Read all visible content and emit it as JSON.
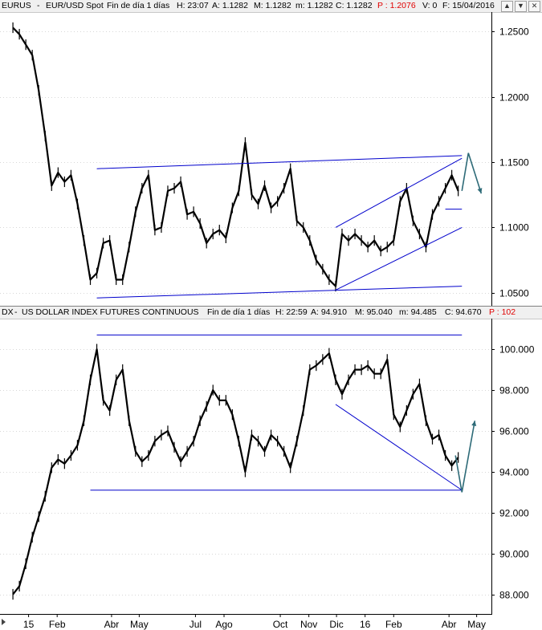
{
  "panels": [
    {
      "header": {
        "symbol": "EURUS",
        "separator": "-",
        "name": "EUR/USD Spot",
        "period": "Fin de día 1 días",
        "time": "H: 23:07",
        "open": "A: 1.1282",
        "high": "M: 1.1282",
        "low": "m: 1.1282",
        "close": "C: 1.1282",
        "p_value": "P : 1.2076",
        "volume": "V: 0",
        "date": "F: 15/04/2016"
      },
      "y_ticks": [
        "1.2500",
        "1.2000",
        "1.1500",
        "1.1000",
        "1.0500"
      ]
    },
    {
      "header": {
        "symbol": "DX",
        "separator": "-",
        "name": "US DOLLAR INDEX FUTURES CONTINUOUS",
        "period": "Fin de día 1 días",
        "time": "H: 22:59",
        "open": "A: 94.910",
        "high": "M: 95.040",
        "low": "m: 94.485",
        "close": "C: 94.670",
        "p_value": "P : 102"
      },
      "y_ticks": [
        "100.000",
        "98.000",
        "96.000",
        "94.000",
        "92.000",
        "90.000",
        "88.000"
      ]
    }
  ],
  "window_buttons": [
    "▲",
    "▼",
    "✕"
  ],
  "x_ticks": [
    "15",
    "Feb",
    "Abr",
    "May",
    "Jul",
    "Ago",
    "Oct",
    "Nov",
    "Dic",
    "16",
    "Feb",
    "Abr",
    "May"
  ],
  "colors": {
    "price": "#000000",
    "trendline": "#0000cc",
    "projection": "#2e6b78",
    "grid": "#b0b0b0",
    "header_bg": "#f0f0f0",
    "p_value": "#e00000"
  },
  "chart_data": [
    {
      "type": "line",
      "series": [
        {
          "name": "EURUS",
          "x": [
            "2014-12-15",
            "2014-12-22",
            "2014-12-29",
            "2015-01-05",
            "2015-01-12",
            "2015-01-19",
            "2015-01-26",
            "2015-02-02",
            "2015-02-09",
            "2015-02-16",
            "2015-02-23",
            "2015-03-02",
            "2015-03-09",
            "2015-03-16",
            "2015-03-23",
            "2015-03-30",
            "2015-04-06",
            "2015-04-13",
            "2015-04-20",
            "2015-04-27",
            "2015-05-04",
            "2015-05-11",
            "2015-05-18",
            "2015-05-25",
            "2015-06-01",
            "2015-06-08",
            "2015-06-15",
            "2015-06-22",
            "2015-06-29",
            "2015-07-06",
            "2015-07-13",
            "2015-07-20",
            "2015-07-27",
            "2015-08-03",
            "2015-08-10",
            "2015-08-17",
            "2015-08-24",
            "2015-08-31",
            "2015-09-07",
            "2015-09-14",
            "2015-09-21",
            "2015-09-28",
            "2015-10-05",
            "2015-10-12",
            "2015-10-19",
            "2015-10-26",
            "2015-11-02",
            "2015-11-09",
            "2015-11-16",
            "2015-11-23",
            "2015-11-30",
            "2015-12-07",
            "2015-12-14",
            "2015-12-21",
            "2015-12-28",
            "2016-01-04",
            "2016-01-11",
            "2016-01-18",
            "2016-01-25",
            "2016-02-01",
            "2016-02-08",
            "2016-02-15",
            "2016-02-22",
            "2016-02-29",
            "2016-03-07",
            "2016-03-14",
            "2016-03-21",
            "2016-03-28",
            "2016-04-04",
            "2016-04-11"
          ],
          "values": [
            1.253,
            1.248,
            1.24,
            1.232,
            1.205,
            1.17,
            1.132,
            1.142,
            1.135,
            1.14,
            1.118,
            1.09,
            1.06,
            1.065,
            1.088,
            1.09,
            1.06,
            1.06,
            1.085,
            1.112,
            1.13,
            1.14,
            1.098,
            1.1,
            1.128,
            1.13,
            1.135,
            1.11,
            1.112,
            1.103,
            1.088,
            1.095,
            1.098,
            1.092,
            1.115,
            1.128,
            1.165,
            1.125,
            1.118,
            1.132,
            1.115,
            1.12,
            1.13,
            1.145,
            1.105,
            1.1,
            1.09,
            1.075,
            1.068,
            1.06,
            1.055,
            1.095,
            1.09,
            1.095,
            1.09,
            1.085,
            1.09,
            1.082,
            1.085,
            1.09,
            1.12,
            1.13,
            1.105,
            1.095,
            1.085,
            1.11,
            1.12,
            1.13,
            1.14,
            1.128
          ]
        }
      ],
      "ylim": [
        1.04,
        1.265
      ],
      "trendlines": [
        {
          "x": [
            "2015-03-16",
            "2016-04-15"
          ],
          "y": [
            1.145,
            1.155
          ]
        },
        {
          "x": [
            "2015-03-16",
            "2016-04-15"
          ],
          "y": [
            1.046,
            1.055
          ]
        },
        {
          "x": [
            "2015-11-30",
            "2016-04-15"
          ],
          "y": [
            1.052,
            1.1
          ]
        },
        {
          "x": [
            "2015-11-30",
            "2016-04-15"
          ],
          "y": [
            1.1,
            1.153
          ]
        },
        {
          "x": [
            "2016-03-28",
            "2016-04-15"
          ],
          "y": [
            1.114,
            1.114
          ]
        }
      ],
      "projection": {
        "x": [
          "2016-04-15",
          "2016-04-22",
          "2016-05-06"
        ],
        "y": [
          1.128,
          1.157,
          1.126
        ]
      }
    },
    {
      "type": "line",
      "series": [
        {
          "name": "DX",
          "x": [
            "2014-12-15",
            "2014-12-22",
            "2014-12-29",
            "2015-01-05",
            "2015-01-12",
            "2015-01-19",
            "2015-01-26",
            "2015-02-02",
            "2015-02-09",
            "2015-02-16",
            "2015-02-23",
            "2015-03-02",
            "2015-03-09",
            "2015-03-16",
            "2015-03-23",
            "2015-03-30",
            "2015-04-06",
            "2015-04-13",
            "2015-04-20",
            "2015-04-27",
            "2015-05-04",
            "2015-05-11",
            "2015-05-18",
            "2015-05-25",
            "2015-06-01",
            "2015-06-08",
            "2015-06-15",
            "2015-06-22",
            "2015-06-29",
            "2015-07-06",
            "2015-07-13",
            "2015-07-20",
            "2015-07-27",
            "2015-08-03",
            "2015-08-10",
            "2015-08-17",
            "2015-08-24",
            "2015-08-31",
            "2015-09-07",
            "2015-09-14",
            "2015-09-21",
            "2015-09-28",
            "2015-10-05",
            "2015-10-12",
            "2015-10-19",
            "2015-10-26",
            "2015-11-02",
            "2015-11-09",
            "2015-11-16",
            "2015-11-23",
            "2015-11-30",
            "2015-12-07",
            "2015-12-14",
            "2015-12-21",
            "2015-12-28",
            "2016-01-04",
            "2016-01-11",
            "2016-01-18",
            "2016-01-25",
            "2016-02-01",
            "2016-02-08",
            "2016-02-15",
            "2016-02-22",
            "2016-02-29",
            "2016-03-07",
            "2016-03-14",
            "2016-03-21",
            "2016-03-28",
            "2016-04-04",
            "2016-04-11"
          ],
          "values": [
            88.0,
            88.4,
            89.5,
            90.8,
            91.8,
            92.8,
            94.2,
            94.6,
            94.4,
            94.8,
            95.3,
            96.5,
            98.5,
            100.0,
            97.5,
            97.0,
            98.5,
            99.0,
            96.5,
            95.0,
            94.5,
            94.8,
            95.5,
            95.8,
            96.0,
            95.2,
            94.5,
            95.0,
            95.5,
            96.5,
            97.2,
            98.0,
            97.5,
            97.5,
            96.8,
            95.5,
            94.0,
            95.8,
            95.5,
            95.0,
            95.8,
            95.5,
            95.0,
            94.2,
            95.5,
            97.0,
            99.0,
            99.2,
            99.5,
            99.8,
            98.5,
            97.8,
            98.5,
            99.0,
            99.0,
            99.2,
            98.8,
            98.8,
            99.5,
            96.8,
            96.2,
            97.0,
            97.8,
            98.3,
            96.5,
            95.6,
            95.8,
            94.8,
            94.3,
            94.7
          ]
        }
      ],
      "ylim": [
        87.0,
        101.5
      ],
      "trendlines": [
        {
          "x": [
            "2015-03-16",
            "2016-04-15"
          ],
          "y": [
            100.7,
            100.7
          ]
        },
        {
          "x": [
            "2015-03-09",
            "2016-04-15"
          ],
          "y": [
            93.1,
            93.1
          ]
        },
        {
          "x": [
            "2015-11-30",
            "2016-04-15"
          ],
          "y": [
            97.3,
            93.1
          ]
        }
      ],
      "projection": {
        "x": [
          "2016-04-08",
          "2016-04-15",
          "2016-04-29"
        ],
        "y": [
          94.8,
          93.0,
          96.5
        ]
      }
    }
  ]
}
